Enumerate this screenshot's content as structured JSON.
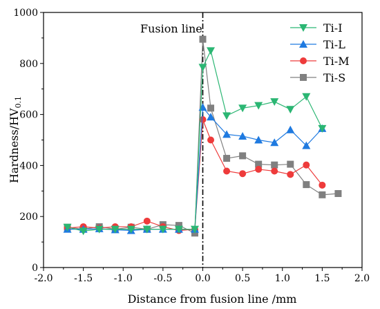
{
  "chart_data": {
    "type": "line",
    "xlabel": "Distance from fusion line /mm",
    "ylabel_main": "Hardness/HV",
    "ylabel_sub": "0.1",
    "xlim": [
      -2.0,
      2.0
    ],
    "ylim": [
      0,
      1000
    ],
    "x_ticks": [
      -2.0,
      -1.5,
      -1.0,
      -0.5,
      0.0,
      0.5,
      1.0,
      1.5,
      2.0
    ],
    "x_tick_labels": [
      "-2.0",
      "-1.5",
      "-1.0",
      "-0.5",
      "0.0",
      "0.5",
      "1.0",
      "1.5",
      "2.0"
    ],
    "y_ticks": [
      0,
      200,
      400,
      600,
      800,
      1000
    ],
    "y_tick_labels": [
      "0",
      "200",
      "400",
      "600",
      "800",
      "1000"
    ],
    "grid": false,
    "legend_position": "top-right",
    "annotations": [
      {
        "text": "Fusion line",
        "x": 0.0
      }
    ],
    "series": [
      {
        "name": "Ti-I",
        "color": "#2bb673",
        "marker": "triangle-down",
        "x": [
          -1.7,
          -1.5,
          -1.3,
          -1.1,
          -0.9,
          -0.7,
          -0.5,
          -0.3,
          -0.1,
          0.0,
          0.1,
          0.3,
          0.5,
          0.7,
          0.9,
          1.1,
          1.3,
          1.5
        ],
        "y": [
          158,
          143,
          150,
          150,
          150,
          150,
          150,
          150,
          150,
          785,
          850,
          595,
          625,
          635,
          650,
          620,
          670,
          545
        ]
      },
      {
        "name": "Ti-L",
        "color": "#1f7ae0",
        "marker": "triangle-up",
        "x": [
          -1.7,
          -1.5,
          -1.3,
          -1.1,
          -0.9,
          -0.7,
          -0.5,
          -0.3,
          -0.1,
          0.0,
          0.1,
          0.3,
          0.5,
          0.7,
          0.9,
          1.1,
          1.3,
          1.5
        ],
        "y": [
          150,
          150,
          152,
          148,
          145,
          150,
          150,
          150,
          150,
          628,
          590,
          522,
          515,
          500,
          490,
          540,
          478,
          545
        ]
      },
      {
        "name": "Ti-M",
        "color": "#ee3b3b",
        "marker": "circle",
        "x": [
          -1.7,
          -1.5,
          -1.3,
          -1.1,
          -0.9,
          -0.7,
          -0.5,
          -0.3,
          -0.1,
          0.0,
          0.1,
          0.3,
          0.5,
          0.7,
          0.9,
          1.1,
          1.3,
          1.5
        ],
        "y": [
          155,
          160,
          155,
          160,
          160,
          182,
          160,
          145,
          150,
          580,
          500,
          378,
          368,
          385,
          378,
          365,
          402,
          323
        ]
      },
      {
        "name": "Ti-S",
        "color": "#808080",
        "marker": "square",
        "x": [
          -1.7,
          -1.5,
          -1.3,
          -1.1,
          -0.9,
          -0.7,
          -0.5,
          -0.3,
          -0.1,
          0.0,
          0.1,
          0.3,
          0.5,
          0.7,
          0.9,
          1.1,
          1.3,
          1.5,
          1.7
        ],
        "y": [
          158,
          150,
          160,
          150,
          158,
          150,
          168,
          165,
          135,
          895,
          625,
          428,
          438,
          405,
          402,
          405,
          325,
          285,
          290
        ]
      }
    ]
  }
}
